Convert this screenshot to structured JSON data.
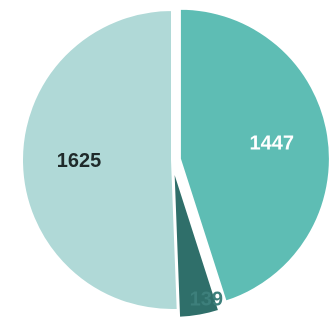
{
  "chart_data": {
    "type": "pie",
    "title": "",
    "start": "12 o'clock",
    "direction": "clockwise",
    "slices": [
      {
        "value": 1447,
        "label": "1447",
        "color": "#5ebdb4",
        "label_color": "#ffffff",
        "exploded": true
      },
      {
        "value": 139,
        "label": "139",
        "color": "#2f6f6a",
        "label_color": "#3d7f7b",
        "exploded": true
      },
      {
        "value": 1625,
        "label": "1625",
        "color": "#b0d9d7",
        "label_color": "#1f2a2a",
        "exploded": false
      }
    ],
    "legend": "none",
    "background": "#ffffff"
  }
}
